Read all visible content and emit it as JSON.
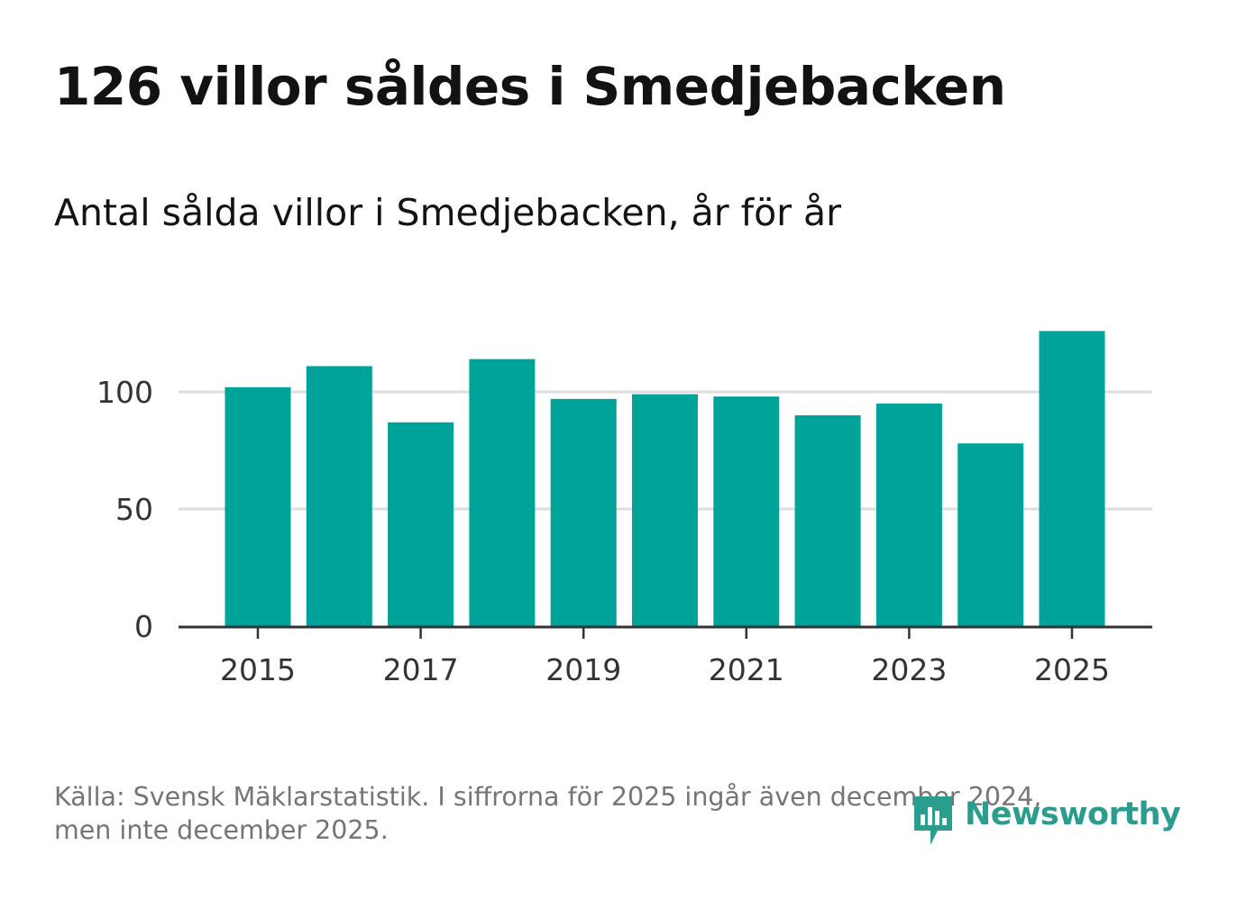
{
  "title": "126 villor såldes i Smedjebacken",
  "subtitle": "Antal sålda villor i Smedjebacken, år för år",
  "source_line1": "Källa: Svensk Mäklarstatistik. I siffrorna för 2025 ingår även december 2024,",
  "source_line2": "men inte december 2025.",
  "brand": "Newsworthy",
  "colors": {
    "bar": "#00a39a",
    "grid": "#dddddd",
    "axis": "#333333",
    "tick_text": "#333333",
    "brand": "#2a9d8f"
  },
  "chart_data": {
    "type": "bar",
    "title": "Antal sålda villor i Smedjebacken, år för år",
    "xlabel": "",
    "ylabel": "",
    "categories": [
      "2015",
      "2016",
      "2017",
      "2018",
      "2019",
      "2020",
      "2021",
      "2022",
      "2023",
      "2024",
      "2025"
    ],
    "values": [
      102,
      111,
      87,
      114,
      97,
      99,
      98,
      90,
      95,
      78,
      126
    ],
    "ylim": [
      0,
      130
    ],
    "yticks": [
      "0",
      "50",
      "100"
    ],
    "xticks": [
      "2015",
      "2017",
      "2019",
      "2021",
      "2023",
      "2025"
    ],
    "grid": true,
    "legend": "none"
  }
}
